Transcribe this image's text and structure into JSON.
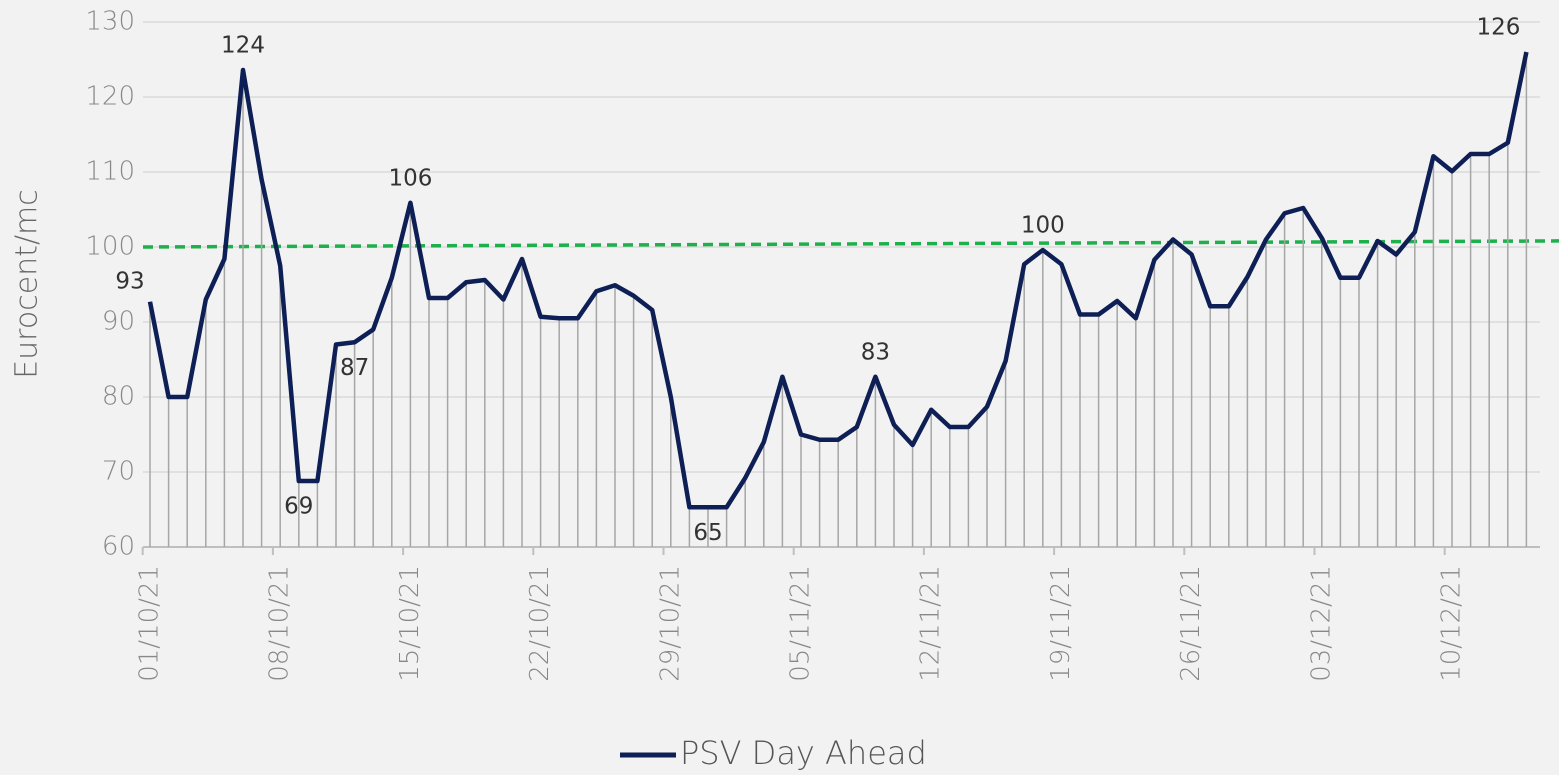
{
  "chart_data": {
    "type": "line",
    "y_label": "Eurocent/mc",
    "categories": [
      "01/10/21",
      null,
      null,
      null,
      null,
      null,
      null,
      "08/10/21",
      null,
      null,
      null,
      null,
      null,
      null,
      "15/10/21",
      null,
      null,
      null,
      null,
      null,
      null,
      "22/10/21",
      null,
      null,
      null,
      null,
      null,
      null,
      "29/10/21",
      null,
      null,
      null,
      null,
      null,
      null,
      "05/11/21",
      null,
      null,
      null,
      null,
      null,
      null,
      "12/11/21",
      null,
      null,
      null,
      null,
      null,
      null,
      "19/11/21",
      null,
      null,
      null,
      null,
      null,
      null,
      "26/11/21",
      null,
      null,
      null,
      null,
      null,
      null,
      "03/12/21",
      null,
      null,
      null,
      null,
      null,
      null,
      "10/12/21",
      null,
      null,
      null,
      null
    ],
    "series": [
      {
        "name": "PSV Day Ahead",
        "color": "#0e1f56",
        "values": [
          92.7,
          80,
          80,
          93,
          98.4,
          123.6,
          109,
          97.5,
          68.8,
          68.8,
          87,
          87.3,
          89,
          95.9,
          105.9,
          93.2,
          93.2,
          95.3,
          95.6,
          93,
          98.4,
          90.7,
          90.5,
          90.5,
          94.1,
          94.9,
          93.5,
          91.6,
          80,
          65.3,
          65.3,
          65.3,
          69.2,
          74,
          82.7,
          75,
          74.3,
          74.3,
          76,
          82.7,
          76.3,
          73.6,
          78.3,
          76,
          76,
          78.7,
          84.8,
          97.7,
          99.6,
          97.7,
          91,
          91,
          92.8,
          90.5,
          98.3,
          101,
          99,
          92.1,
          92.1,
          96,
          101,
          104.5,
          105.2,
          101.2,
          95.9,
          95.9,
          100.8,
          99,
          102,
          112.1,
          110.1,
          112.4,
          112.4,
          113.9,
          126
        ],
        "value_labels": [
          "93",
          null,
          null,
          null,
          null,
          "124",
          null,
          null,
          "69",
          null,
          null,
          "87",
          null,
          null,
          "106",
          null,
          null,
          null,
          null,
          null,
          null,
          null,
          null,
          null,
          null,
          null,
          null,
          null,
          null,
          null,
          "65",
          null,
          null,
          null,
          null,
          null,
          null,
          null,
          null,
          "83",
          null,
          null,
          null,
          null,
          null,
          null,
          null,
          null,
          "100",
          null,
          null,
          null,
          null,
          null,
          null,
          null,
          null,
          null,
          null,
          null,
          null,
          null,
          null,
          null,
          null,
          null,
          null,
          null,
          null,
          null,
          null,
          null,
          null,
          null,
          "126"
        ]
      }
    ],
    "trendline": {
      "color": "#1db04b",
      "start": 100,
      "end": 100.8
    },
    "ylim": [
      60,
      130
    ],
    "yticks": [
      60,
      70,
      80,
      90,
      100,
      110,
      120,
      130
    ],
    "grid": true,
    "drop_lines": true,
    "legend": "bottom"
  }
}
